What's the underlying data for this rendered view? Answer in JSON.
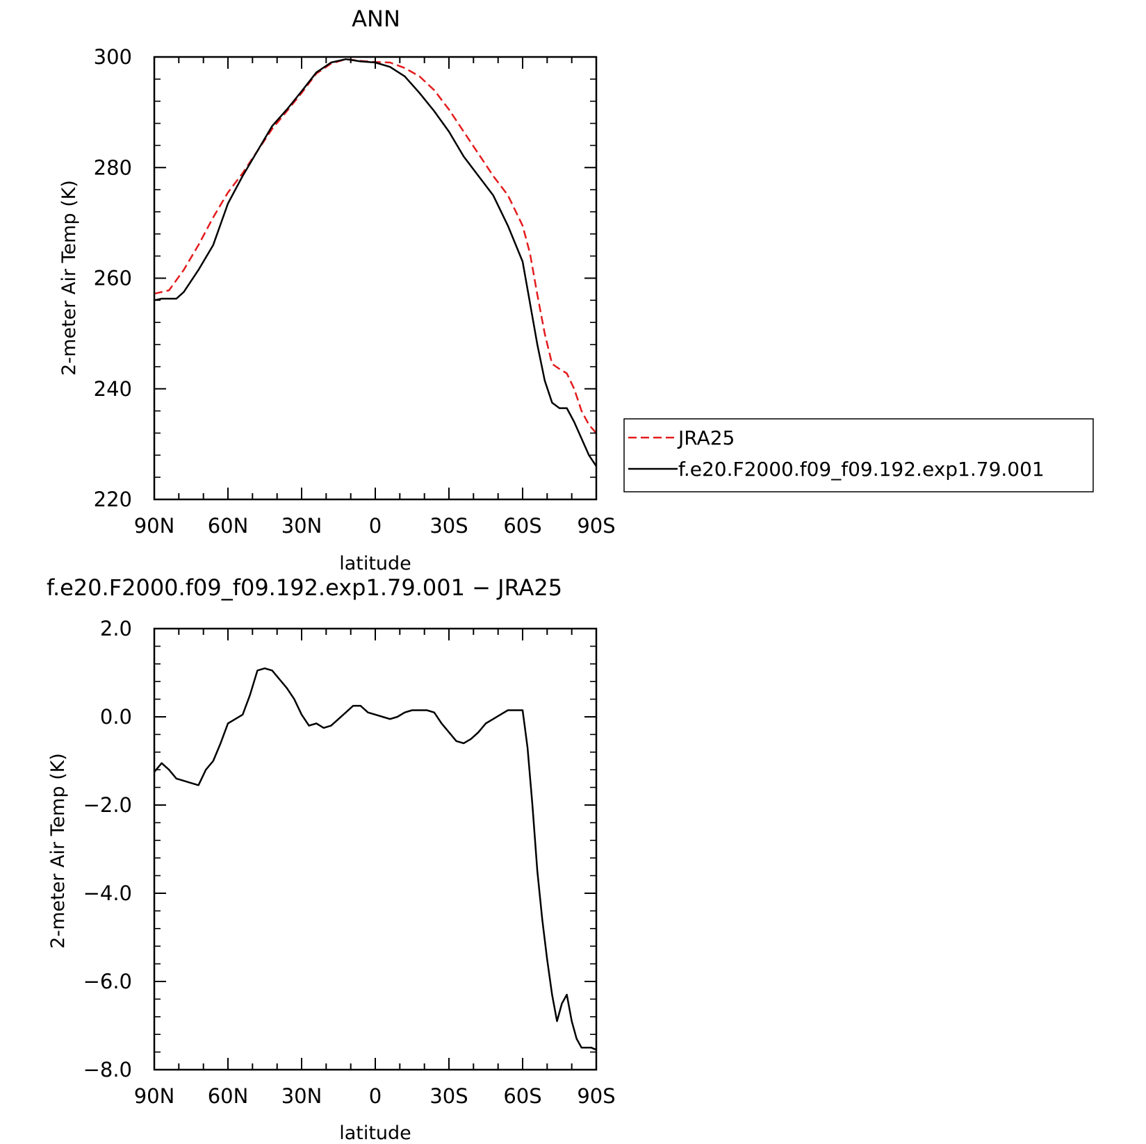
{
  "colors": {
    "reference": "#e41a1c",
    "model": "#000000",
    "frame": "#000000",
    "background": "#ffffff"
  },
  "chart_data": [
    {
      "type": "line",
      "title": "ANN",
      "xlabel": "latitude",
      "ylabel": "2-meter Air Temp (K)",
      "xlim": [
        90,
        -90
      ],
      "ylim": [
        220,
        300
      ],
      "x_ticks": [
        90,
        60,
        30,
        0,
        -30,
        -60,
        -90
      ],
      "x_tick_labels": [
        "90N",
        "60N",
        "30N",
        "0",
        "30S",
        "60S",
        "90S"
      ],
      "y_ticks": [
        220,
        240,
        260,
        280,
        300
      ],
      "y_tick_labels": [
        "220",
        "240",
        "260",
        "280",
        "300"
      ],
      "grid": false,
      "legend": "outside-right",
      "series": [
        {
          "name": "JRA25",
          "style": "dashed",
          "color": "#e41a1c",
          "x": [
            90,
            84,
            78,
            72,
            66,
            60,
            54,
            48,
            42,
            36,
            30,
            24,
            18,
            12,
            6,
            0,
            -6,
            -12,
            -18,
            -24,
            -30,
            -36,
            -42,
            -48,
            -54,
            -60,
            -63,
            -66,
            -69,
            -72,
            -75,
            -78,
            -81,
            -84,
            -87,
            -90
          ],
          "y": [
            257.2,
            257.8,
            261.5,
            266.0,
            271.0,
            275.5,
            279.0,
            283.0,
            287.0,
            290.2,
            293.5,
            297.0,
            298.8,
            299.6,
            299.3,
            299.1,
            299.0,
            298.0,
            296.5,
            294.0,
            290.5,
            286.5,
            282.5,
            278.5,
            275.0,
            269.5,
            264.5,
            257.0,
            250.0,
            244.5,
            243.6,
            242.8,
            240.0,
            236.0,
            233.5,
            232.0
          ]
        },
        {
          "name": "f.e20.F2000.f09_f09.192.exp1.79.001",
          "style": "solid",
          "color": "#000000",
          "x": [
            90,
            87,
            81,
            78,
            72,
            66,
            60,
            54,
            48,
            42,
            36,
            30,
            24,
            18,
            12,
            6,
            0,
            -6,
            -12,
            -18,
            -24,
            -30,
            -36,
            -42,
            -48,
            -54,
            -60,
            -63,
            -66,
            -69,
            -72,
            -75,
            -78,
            -81,
            -84,
            -87,
            -90
          ],
          "y": [
            256.0,
            256.3,
            256.3,
            257.5,
            261.5,
            266.0,
            273.5,
            278.5,
            283.0,
            287.5,
            290.5,
            293.8,
            297.2,
            299.0,
            299.6,
            299.2,
            299.0,
            298.2,
            296.5,
            293.5,
            290.2,
            286.5,
            282.0,
            278.5,
            275.0,
            269.5,
            263.0,
            255.5,
            248.0,
            241.5,
            237.5,
            236.5,
            236.5,
            234.0,
            231.0,
            228.0,
            226.0
          ]
        }
      ]
    },
    {
      "type": "line",
      "title": "f.e20.F2000.f09_f09.192.exp1.79.001 − JRA25",
      "xlabel": "latitude",
      "ylabel": "2-meter Air Temp (K)",
      "xlim": [
        90,
        -90
      ],
      "ylim": [
        -8,
        2
      ],
      "x_ticks": [
        90,
        60,
        30,
        0,
        -30,
        -60,
        -90
      ],
      "x_tick_labels": [
        "90N",
        "60N",
        "30N",
        "0",
        "30S",
        "60S",
        "90S"
      ],
      "y_ticks": [
        -8,
        -6,
        -4,
        -2,
        0,
        2
      ],
      "y_tick_labels": [
        "−8.0",
        "−6.0",
        "−4.0",
        "−2.0",
        "0.0",
        "2.0"
      ],
      "grid": false,
      "series": [
        {
          "style": "solid",
          "color": "#000000",
          "x": [
            90,
            87,
            84,
            81,
            78,
            75,
            72,
            69,
            66,
            63,
            60,
            57,
            54,
            51,
            48,
            45,
            42,
            39,
            36,
            33,
            30,
            27,
            24,
            21,
            18,
            15,
            12,
            9,
            6,
            3,
            0,
            -3,
            -6,
            -9,
            -12,
            -15,
            -18,
            -21,
            -24,
            -27,
            -30,
            -33,
            -36,
            -39,
            -42,
            -45,
            -48,
            -51,
            -54,
            -57,
            -60,
            -62,
            -64,
            -66,
            -68,
            -70,
            -72,
            -74,
            -76,
            -78,
            -80,
            -82,
            -84,
            -86,
            -88,
            -90
          ],
          "y": [
            -1.25,
            -1.05,
            -1.2,
            -1.4,
            -1.45,
            -1.5,
            -1.55,
            -1.2,
            -1.0,
            -0.6,
            -0.15,
            -0.05,
            0.05,
            0.5,
            1.05,
            1.1,
            1.05,
            0.85,
            0.65,
            0.4,
            0.05,
            -0.2,
            -0.15,
            -0.25,
            -0.2,
            -0.05,
            0.1,
            0.25,
            0.25,
            0.1,
            0.05,
            0.0,
            -0.05,
            0.0,
            0.1,
            0.15,
            0.15,
            0.15,
            0.1,
            -0.15,
            -0.35,
            -0.55,
            -0.6,
            -0.5,
            -0.35,
            -0.15,
            -0.05,
            0.05,
            0.15,
            0.15,
            0.15,
            -0.7,
            -2.0,
            -3.5,
            -4.6,
            -5.5,
            -6.3,
            -6.9,
            -6.5,
            -6.3,
            -6.9,
            -7.3,
            -7.5,
            -7.5,
            -7.5,
            -7.55
          ]
        }
      ]
    }
  ]
}
